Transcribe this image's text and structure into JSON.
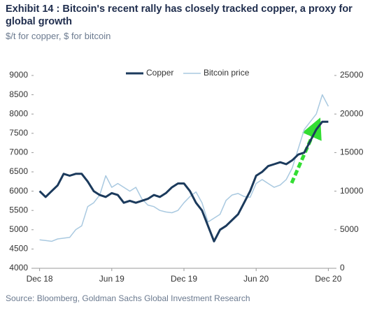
{
  "chart_data": {
    "type": "line",
    "title": "Exhibit 14 : Bitcoin's recent rally has closely tracked copper, a proxy for global growth",
    "subtitle": "$/t for copper, $ for bitcoin",
    "source": "Source: Bloomberg, Goldman Sachs Global Investment Research",
    "x": [
      0,
      0.5,
      1,
      1.5,
      2,
      2.5,
      3,
      3.5,
      4,
      4.5,
      5,
      5.5,
      6,
      6.5,
      7,
      7.5,
      8,
      8.5,
      9,
      9.5,
      10,
      10.5,
      11,
      11.5,
      12,
      12.5,
      13,
      13.5,
      14,
      14.5,
      15,
      15.5,
      16,
      16.5,
      17,
      17.5,
      18,
      18.5,
      19,
      19.5,
      20,
      20.5,
      21,
      21.5,
      22,
      22.5,
      23,
      23.5,
      24
    ],
    "xlim": [
      -0.5,
      24.5
    ],
    "xticks": [
      {
        "value": 0,
        "label": "Dec 18"
      },
      {
        "value": 6,
        "label": "Jun 19"
      },
      {
        "value": 12,
        "label": "Dec 19"
      },
      {
        "value": 18,
        "label": "Jun 20"
      },
      {
        "value": 24,
        "label": "Dec 20"
      }
    ],
    "ylim": [
      4000,
      9000
    ],
    "yticks": [
      4000,
      4500,
      5000,
      5500,
      6000,
      6500,
      7000,
      7500,
      8000,
      8500,
      9000
    ],
    "y2lim": [
      0,
      25000
    ],
    "y2ticks": [
      0,
      5000,
      10000,
      15000,
      20000,
      25000
    ],
    "series": [
      {
        "name": "Copper",
        "color": "#1b3a5c",
        "values": [
          6000,
          5850,
          6000,
          6150,
          6450,
          6400,
          6450,
          6450,
          6250,
          6000,
          5900,
          5850,
          5950,
          5900,
          5700,
          5750,
          5700,
          5750,
          5800,
          5900,
          5850,
          5950,
          6100,
          6200,
          6200,
          6000,
          5700,
          5500,
          5100,
          4700,
          5000,
          5100,
          5250,
          5400,
          5700,
          6000,
          6400,
          6500,
          6650,
          6700,
          6750,
          6700,
          6800,
          6950,
          7000,
          7300,
          7600,
          7800,
          7800
        ]
      },
      {
        "name": "Bitcoin price",
        "color": "#a9c9e0",
        "axis": "y2",
        "values": [
          3700,
          3600,
          3500,
          3800,
          3900,
          4000,
          5000,
          5500,
          8000,
          8500,
          9500,
          12000,
          10500,
          11000,
          10500,
          10000,
          10500,
          9000,
          8200,
          8000,
          7500,
          7300,
          7200,
          7500,
          8500,
          9300,
          9900,
          8500,
          6000,
          6500,
          7000,
          8800,
          9500,
          9700,
          9300,
          9200,
          11000,
          11500,
          11000,
          10500,
          10800,
          11500,
          13000,
          15500,
          18000,
          19000,
          20000,
          22500,
          21000
        ]
      }
    ]
  }
}
